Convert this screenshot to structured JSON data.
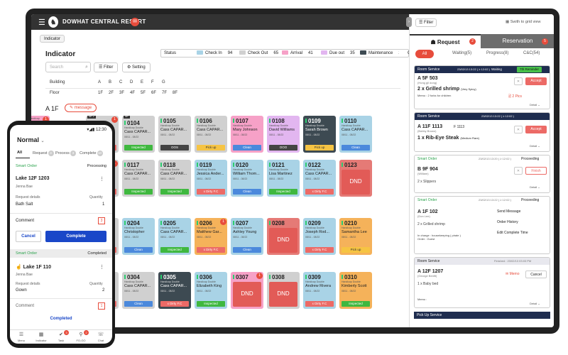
{
  "app": {
    "title": "DOWHAT CENTRAL RESORT",
    "badge": "",
    "chip": "Indicator"
  },
  "indicator": {
    "title": "Indicator",
    "status_label": "Status",
    "statuses": [
      {
        "label": "Check In",
        "count": "94",
        "color": "#a9d3e6"
      },
      {
        "label": "Check Out",
        "count": "65",
        "color": "#d0d0d0"
      },
      {
        "label": "Arrival",
        "count": "41",
        "color": "#f6a1c7"
      },
      {
        "label": "Due out",
        "count": "35",
        "color": "#e2b6f0"
      },
      {
        "label": "Maintenance",
        "count": "2",
        "color": "#3d4a52"
      },
      {
        "label": "Conn",
        "count": "",
        "color": "#ffffff"
      }
    ],
    "search_placeholder": "Search",
    "filter": "Filter",
    "setting": "Setting",
    "building_label": "Building",
    "buildings": [
      "A",
      "B",
      "C",
      "D",
      "E",
      "F",
      "G"
    ],
    "floor_label": "Floor",
    "floors": [
      "1F",
      "2F",
      "3F",
      "4F",
      "5F",
      "6F",
      "7F",
      "8F"
    ],
    "current_floor": "A 1F",
    "message_btn": "message"
  },
  "rooms": [
    {
      "num": "",
      "type": "Handicap Double",
      "guest": "",
      "dates": "08/11 - 08/22",
      "color": "c-pink",
      "tag": "",
      "tagc": "",
      "alert": "1",
      "dnd": "",
      "row": 0,
      "col": 0,
      "partial": true
    },
    {
      "num": "0103",
      "type": "Handicap Double",
      "guest": "Cass CAPAR...",
      "dates": "08/11 - 08/22",
      "color": "c-gray",
      "tag": "x Dirty F.C",
      "tagc": "t-red",
      "alert": "1",
      "dnd": "",
      "row": 0,
      "col": 1,
      "flag": "NP 2"
    },
    {
      "num": "0104",
      "type": "Handicap Double",
      "guest": "Cass CAPAR...",
      "dates": "08/11 - 08/22",
      "color": "c-gray",
      "tag": "Inspected",
      "tagc": "t-green",
      "alert": "",
      "dnd": "",
      "row": 0,
      "col": 2,
      "flag": "NP"
    },
    {
      "num": "0105",
      "type": "Handicap Double",
      "guest": "Cass CAPAR...",
      "dates": "08/11 - 08/22",
      "color": "c-gray",
      "tag": "OOS",
      "tagc": "t-dark",
      "alert": "",
      "dnd": "",
      "row": 0,
      "col": 3
    },
    {
      "num": "0106",
      "type": "Handicap Double",
      "guest": "Cass CAPAR...",
      "dates": "08/11 - 08/22",
      "color": "c-gray",
      "tag": "Pick up",
      "tagc": "t-yellow",
      "alert": "",
      "dnd": "",
      "row": 0,
      "col": 4
    },
    {
      "num": "0107",
      "type": "Handicap Double",
      "guest": "Mary Johnson",
      "dates": "08/11 - 08/22",
      "color": "c-pink",
      "tag": "Clean",
      "tagc": "t-blue",
      "alert": "",
      "dnd": "",
      "row": 0,
      "col": 5
    },
    {
      "num": "0108",
      "type": "Handicap Double",
      "guest": "David Williams",
      "dates": "08/11 - 08/22",
      "color": "c-lav",
      "tag": "OOO",
      "tagc": "t-dark",
      "alert": "",
      "dnd": "",
      "row": 0,
      "col": 6
    },
    {
      "num": "0109",
      "type": "Handicap Double",
      "guest": "Sarah Brown",
      "dates": "08/11 - 08/22",
      "color": "c-dark",
      "tag": "Pick up",
      "tagc": "t-yellow",
      "alert": "",
      "dnd": "",
      "row": 0,
      "col": 7
    },
    {
      "num": "0110",
      "type": "Handicap Double",
      "guest": "Cass CAPAR...",
      "dates": "08/11 - 08/22",
      "color": "c-blue",
      "tag": "Clean",
      "tagc": "t-blue",
      "alert": "",
      "dnd": "",
      "row": 0,
      "col": 8
    },
    {
      "num": "0116",
      "type": "Handicap Double",
      "guest": "Robert Taylor",
      "dates": "08/11 - 08/22",
      "color": "c-gray",
      "tag": "x Dirty F.C",
      "tagc": "t-red",
      "alert": "1",
      "dnd": "",
      "row": 1,
      "col": 1
    },
    {
      "num": "0117",
      "type": "Handicap Double",
      "guest": "Cass CAPAR...",
      "dates": "08/11 - 08/22",
      "color": "c-gray",
      "tag": "Inspected",
      "tagc": "t-green",
      "alert": "",
      "dnd": "",
      "row": 1,
      "col": 2
    },
    {
      "num": "0118",
      "type": "Handicap Double",
      "guest": "Cass CAPAR...",
      "dates": "08/11 - 08/22",
      "color": "c-gray",
      "tag": "Inspected",
      "tagc": "t-green",
      "alert": "",
      "dnd": "",
      "row": 1,
      "col": 3
    },
    {
      "num": "0119",
      "type": "Handicap Double",
      "guest": "Jessica Ander...",
      "dates": "08/11 - 08/22",
      "color": "c-blue",
      "tag": "x Dirty F.C",
      "tagc": "t-red",
      "alert": "",
      "dnd": "",
      "row": 1,
      "col": 4
    },
    {
      "num": "0120",
      "type": "Handicap Double",
      "guest": "William Thom...",
      "dates": "08/11 - 08/22",
      "color": "c-blue",
      "tag": "Clean",
      "tagc": "t-blue",
      "alert": "",
      "dnd": "",
      "row": 1,
      "col": 5
    },
    {
      "num": "0121",
      "type": "Handicap Double",
      "guest": "Lisa Martinez",
      "dates": "08/11 - 08/22",
      "color": "c-blue",
      "tag": "Inspected",
      "tagc": "t-green",
      "alert": "",
      "dnd": "",
      "row": 1,
      "col": 6
    },
    {
      "num": "0122",
      "type": "Handicap Double",
      "guest": "Cass CAPAR...",
      "dates": "08/11 - 08/22",
      "color": "c-blue",
      "tag": "x Dirty F.C",
      "tagc": "t-red",
      "alert": "",
      "dnd": "",
      "row": 1,
      "col": 7
    },
    {
      "num": "0123",
      "type": "",
      "guest": "",
      "dates": "",
      "color": "c-red",
      "tag": "",
      "tagc": "",
      "alert": "",
      "dnd": "DND",
      "row": 1,
      "col": 8
    },
    {
      "num": "0203",
      "type": "Handicap Double",
      "guest": "Cass CAPAR...",
      "dates": "08/11 - 08/22",
      "color": "c-gray",
      "tag": "x Dirty F.C",
      "tagc": "t-red",
      "alert": "",
      "dnd": "",
      "row": 2,
      "col": 1
    },
    {
      "num": "0204",
      "type": "Handicap Double",
      "guest": "Christopher",
      "dates": "08/11 - 08/22",
      "color": "c-blue",
      "tag": "Clean",
      "tagc": "t-blue",
      "alert": "",
      "dnd": "",
      "row": 2,
      "col": 2
    },
    {
      "num": "0205",
      "type": "Handicap Double",
      "guest": "Cass CAPAR...",
      "dates": "08/11 - 08/22",
      "color": "c-blue",
      "tag": "Inspected",
      "tagc": "t-green",
      "alert": "",
      "dnd": "",
      "row": 2,
      "col": 3
    },
    {
      "num": "0206",
      "type": "Handicap Double",
      "guest": "Matthew Gar...",
      "dates": "08/11 - 08/22",
      "color": "c-orange",
      "tag": "x Dirty F.C",
      "tagc": "t-red",
      "alert": "1",
      "dnd": "",
      "row": 2,
      "col": 4
    },
    {
      "num": "0207",
      "type": "Handicap Double",
      "guest": "Ashley Young",
      "dates": "08/11 - 08/22",
      "color": "c-blue",
      "tag": "Clean",
      "tagc": "t-blue",
      "alert": "",
      "dnd": "",
      "row": 2,
      "col": 5
    },
    {
      "num": "0208",
      "type": "",
      "guest": "",
      "dates": "",
      "color": "c-red",
      "tag": "",
      "tagc": "",
      "alert": "",
      "dnd": "DND",
      "row": 2,
      "col": 6
    },
    {
      "num": "0209",
      "type": "Handicap Double",
      "guest": "Joseph Rod...",
      "dates": "08/11 - 08/22",
      "color": "c-blue",
      "tag": "x Dirty F.C",
      "tagc": "t-red",
      "alert": "",
      "dnd": "",
      "row": 2,
      "col": 7
    },
    {
      "num": "0210",
      "type": "Handicap Double",
      "guest": "Samantha Lee",
      "dates": "08/11 - 08/22",
      "color": "c-orange",
      "tag": "Pick up",
      "tagc": "t-yellow",
      "alert": "",
      "dnd": "",
      "row": 2,
      "col": 8
    },
    {
      "num": "0303",
      "type": "Handicap Double",
      "guest": "Cass CAPAR...",
      "dates": "08/11 - 08/22",
      "color": "c-gray",
      "tag": "x Dirty F.C",
      "tagc": "t-red",
      "alert": "",
      "dnd": "",
      "row": 3,
      "col": 1
    },
    {
      "num": "0304",
      "type": "Handicap Double",
      "guest": "Cass CAPAR...",
      "dates": "08/11 - 08/22",
      "color": "c-gray",
      "tag": "Clean",
      "tagc": "t-blue",
      "alert": "",
      "dnd": "",
      "row": 3,
      "col": 2
    },
    {
      "num": "0305",
      "type": "Handicap Double",
      "guest": "Cass CAPAR...",
      "dates": "08/11 - 08/22",
      "color": "c-dark",
      "tag": "x Dirty F.C",
      "tagc": "t-red",
      "alert": "",
      "dnd": "",
      "row": 3,
      "col": 3
    },
    {
      "num": "0306",
      "type": "Handicap Double",
      "guest": "Elizabeth King",
      "dates": "08/11 - 08/22",
      "color": "c-blue",
      "tag": "Inspected",
      "tagc": "t-green",
      "alert": "",
      "dnd": "",
      "row": 3,
      "col": 4
    },
    {
      "num": "0307",
      "type": "",
      "guest": "",
      "dates": "",
      "color": "c-pink",
      "tag": "",
      "tagc": "",
      "alert": "1",
      "dnd": "DND",
      "row": 3,
      "col": 5
    },
    {
      "num": "0308",
      "type": "",
      "guest": "",
      "dates": "",
      "color": "c-gray",
      "tag": "",
      "tagc": "",
      "alert": "",
      "dnd": "DND",
      "row": 3,
      "col": 6
    },
    {
      "num": "0309",
      "type": "Handicap Double",
      "guest": "Andrew Rivera",
      "dates": "08/11 - 08/22",
      "color": "c-blue",
      "tag": "x Dirty F.C",
      "tagc": "t-red",
      "alert": "",
      "dnd": "",
      "row": 3,
      "col": 7
    },
    {
      "num": "0310",
      "type": "Handicap Double",
      "guest": "Kimberly Scott",
      "dates": "08/11 - 08/22",
      "color": "c-orange",
      "tag": "Inspected",
      "tagc": "t-green",
      "alert": "",
      "dnd": "",
      "row": 3,
      "col": 8
    }
  ],
  "panel": {
    "filter": "Filter",
    "switch": "Swith to grid view",
    "tab_request": "Request",
    "tab_request_badge": "2",
    "tab_reservation": "Reservation",
    "tab_reservation_badge": "5",
    "subtabs": [
      "All",
      "Waiting(5)",
      "Progress(8)",
      "C&C(54)"
    ],
    "cards": [
      {
        "header": "Room Service",
        "time": "23/02/13 13:22 ( ≥ 12:02 )",
        "state": "Waiting",
        "state2": "7th Reminder",
        "room": "A 5F 503",
        "who": "(Hong gil dong)",
        "item": "2 x Grilled shrimp",
        "note": "(Very Spicy)",
        "memo": "Memo : 2 forks for children",
        "pics": "2 Pics",
        "btn": "Accept",
        "detail": "Detail"
      },
      {
        "header": "Room Service",
        "time": "23/02/13 13:22 ( ≥ 12:02 )",
        "room": "A 11F 1113",
        "room2": "F 1113",
        "who": "(Bobby Brown)",
        "item": "1 x Rib-Eye Steak",
        "note": "(Medium Rare)",
        "btn": "Accept",
        "detail": "Detail"
      },
      {
        "header": "Smart Order",
        "time": "23/02/13 13:20 ( ≥ 12:02 )",
        "state": "Proceeding",
        "room": "B 9F 904",
        "who": "(William)",
        "item": "2 x Slippers",
        "btn": "Finish",
        "detail": "Detail"
      },
      {
        "header": "Smart Order",
        "time": "23/02/13 13:22 ( ≥ 12:02 )",
        "state": "Proceeding",
        "room": "A 1F 102",
        "who": "(Don Lee)",
        "item": "2 x Grilled shrimp",
        "incharge": "In charge : housekeeping ( pirate )",
        "order": "Order : Guest",
        "menu": [
          "Send Message",
          "Order History",
          "Edit Complete Time"
        ]
      },
      {
        "header": "Room Service",
        "time": "Finished : 23/02/13 03:03 PM",
        "room": "A 12F 1207",
        "who": "(George Benfit)",
        "item": "1 x Baby bed",
        "memo_btn": "Memo",
        "cancel": "Cancel",
        "memo": "Memo :",
        "detail": "Detail"
      }
    ],
    "footer": "Pick Up Service"
  },
  "phone": {
    "time": "12:30",
    "title": "Normal",
    "tabs": [
      "All",
      "Request",
      "Process",
      "Complete"
    ],
    "tab_badges": [
      "",
      "3",
      "3",
      "10"
    ],
    "sec1": "Smart Order",
    "sec1_state": "Processing",
    "room1": "Lake 12F 1203",
    "guest1": "Jenna Bae",
    "req_label": "Request details",
    "qty_label": "Quantity",
    "item1": "Bath Salt",
    "qty1": "1",
    "comment": "Comment",
    "cmt_count": "3",
    "cancel": "Cancel",
    "complete": "Complete",
    "sec2": "Smart Order",
    "sec2_state": "Completed",
    "room2": "Lake 1F 110",
    "guest2": "Jenna Bae",
    "item2": "Gown",
    "qty2": "2",
    "cmt_count2": "1",
    "completed": "Completed",
    "nav": [
      "Menu",
      "Indicator",
      "Task",
      "FO-GO",
      "Chat"
    ],
    "nav_badges": [
      "",
      "",
      "3",
      "2",
      ""
    ]
  }
}
